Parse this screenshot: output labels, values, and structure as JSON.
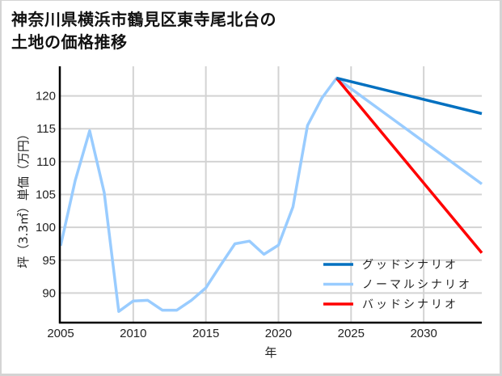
{
  "title": {
    "line1": "神奈川県横浜市鶴見区東寺尾北台の",
    "line2": "土地の価格推移"
  },
  "colors": {
    "good": "#0070c0",
    "normal": "#99ccff",
    "bad": "#ff0000",
    "grid": "#d3d3d3",
    "axis": "#000000",
    "frame": "#d4d4d4"
  },
  "chart_data": {
    "type": "line",
    "title": "神奈川県横浜市鶴見区東寺尾北台の土地の価格推移",
    "xlabel": "年",
    "ylabel": "坪（3.3㎡）単価（万円）",
    "xlim": [
      2005,
      2034
    ],
    "ylim": [
      85.5,
      124.5
    ],
    "xticks": [
      2005,
      2010,
      2015,
      2020,
      2025,
      2030
    ],
    "yticks": [
      90,
      95,
      100,
      105,
      110,
      115,
      120
    ],
    "grid": true,
    "legend_position": "lower right",
    "series": [
      {
        "name": "グッドシナリオ",
        "color": "#0070c0",
        "x": [
          2024,
          2034
        ],
        "y": [
          122.7,
          117.3
        ]
      },
      {
        "name": "ノーマルシナリオ",
        "color": "#99ccff",
        "x": [
          2005,
          2006,
          2007,
          2008,
          2009,
          2010,
          2011,
          2012,
          2013,
          2014,
          2015,
          2016,
          2017,
          2018,
          2019,
          2020,
          2021,
          2022,
          2023,
          2024,
          2034
        ],
        "y": [
          97.2,
          107.1,
          114.7,
          105.3,
          87.2,
          88.8,
          88.9,
          87.4,
          87.4,
          88.9,
          90.8,
          94.2,
          97.5,
          97.9,
          95.9,
          97.3,
          103.1,
          115.5,
          119.7,
          122.7,
          106.6
        ]
      },
      {
        "name": "バッドシナリオ",
        "color": "#ff0000",
        "x": [
          2024,
          2034
        ],
        "y": [
          122.7,
          96.1
        ]
      }
    ]
  },
  "legend": {
    "items": [
      {
        "label": "グッドシナリオ",
        "color": "#0070c0"
      },
      {
        "label": "ノーマルシナリオ",
        "color": "#99ccff"
      },
      {
        "label": "バッドシナリオ",
        "color": "#ff0000"
      }
    ]
  }
}
